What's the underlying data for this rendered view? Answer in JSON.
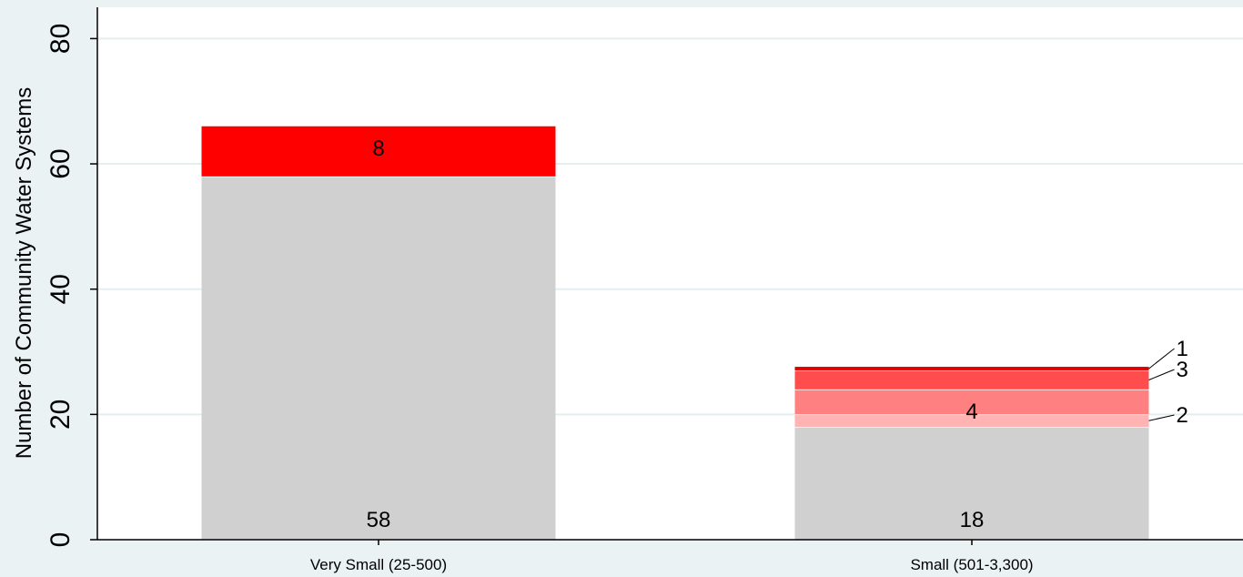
{
  "chart_data": {
    "type": "bar",
    "stacked": true,
    "title": "",
    "xlabel": "",
    "ylabel": "Number of Community Water Systems",
    "ylim": [
      0,
      85
    ],
    "yticks": [
      0,
      20,
      40,
      60,
      80
    ],
    "grid": true,
    "categories": [
      "Very Small (25-500)",
      "Small (501-3,300)"
    ],
    "bars": [
      {
        "category": "Very Small (25-500)",
        "segments": [
          {
            "value": 58,
            "color": "#d0d0d0",
            "label": "58",
            "label_style": "bottom"
          },
          {
            "value": 8,
            "color": "#ff0000",
            "label": "8",
            "label_style": "inside"
          }
        ]
      },
      {
        "category": "Small (501-3,300)",
        "segments": [
          {
            "value": 18,
            "color": "#d0d0d0",
            "label": "18",
            "label_style": "bottom"
          },
          {
            "value": 2,
            "color": "#ffb3b3",
            "label": "2",
            "label_style": "callout"
          },
          {
            "value": 4,
            "color": "#ff8080",
            "label": "4",
            "label_style": "inside"
          },
          {
            "value": 3,
            "color": "#ff4d4d",
            "label": "3",
            "label_style": "callout"
          },
          {
            "value": 0.6,
            "color": "#e00000",
            "label": "1",
            "label_style": "callout"
          }
        ]
      }
    ],
    "colors": {
      "plot_background": "#ffffff",
      "page_background": "#eaf2f3",
      "grid": "#e3eeef",
      "axis": "#000000"
    }
  }
}
